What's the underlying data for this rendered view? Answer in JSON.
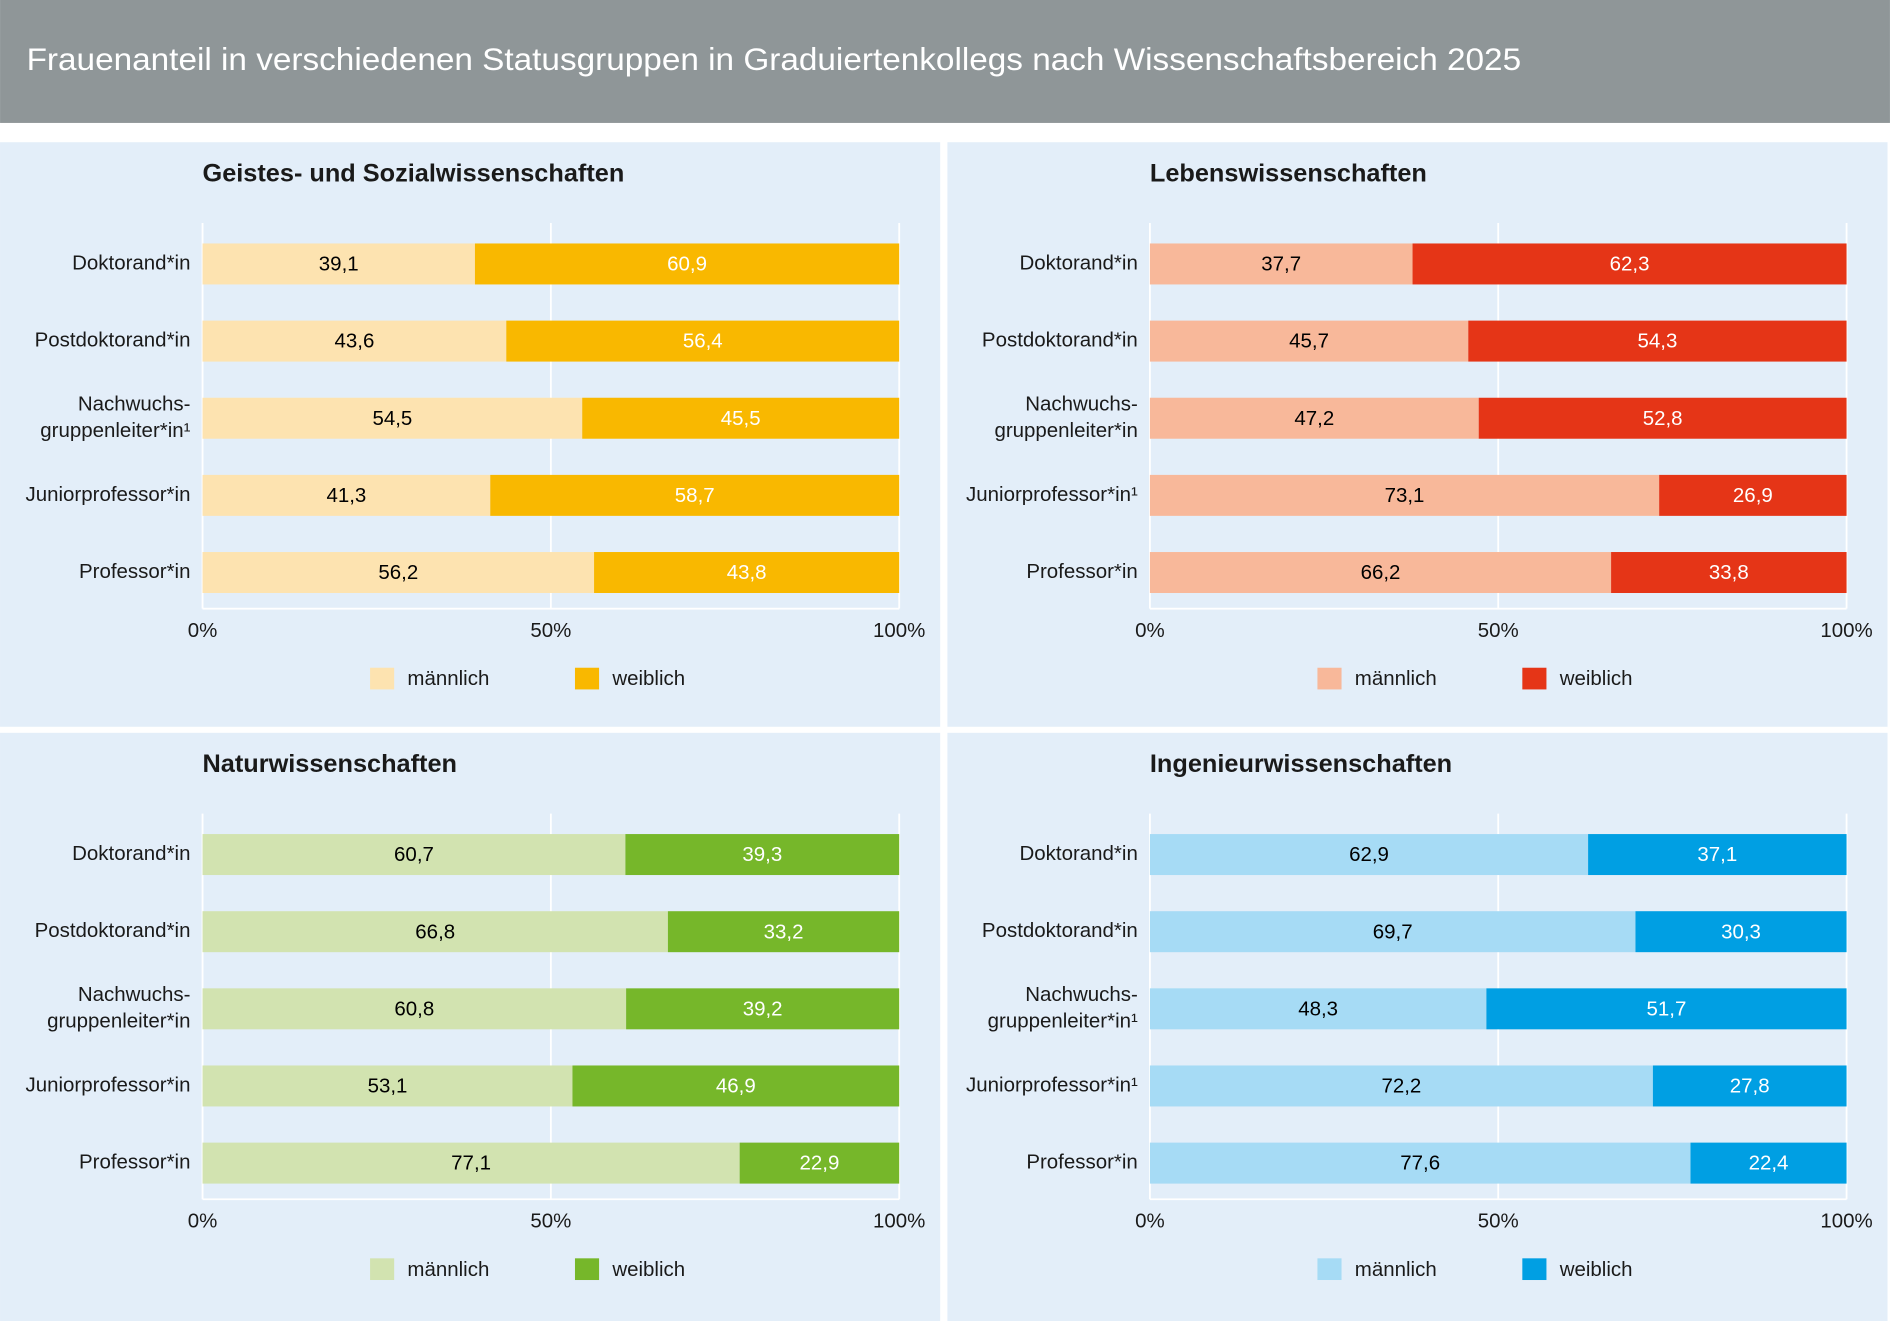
{
  "header": {
    "title": "Frauenanteil in verschiedenen Statusgruppen in Graduiertenkollegs nach Wissenschaftsbereich 2025"
  },
  "chart_data": [
    {
      "type": "bar",
      "orientation": "horizontal",
      "stacked": true,
      "title": "Geistes- und Sozialwissenschaften",
      "categories": [
        [
          "Doktorand*in"
        ],
        [
          "Postdoktorand*in"
        ],
        [
          "Nachwuchs-",
          "gruppenleiter*in¹"
        ],
        [
          "Juniorprofessor*in"
        ],
        [
          "Professor*in"
        ]
      ],
      "series": [
        {
          "name": "männlich",
          "color": "#fde3b0",
          "label_color": "#000000",
          "values": [
            39.1,
            43.6,
            54.5,
            41.3,
            56.2
          ],
          "value_labels": [
            "39,1",
            "43,6",
            "54,5",
            "41,3",
            "56,2"
          ]
        },
        {
          "name": "weiblich",
          "color": "#f9b800",
          "label_color": "#ffffff",
          "values": [
            60.9,
            56.4,
            45.5,
            58.7,
            43.8
          ],
          "value_labels": [
            "60,9",
            "56,4",
            "45,5",
            "58,7",
            "43,8"
          ]
        }
      ],
      "xlim": [
        0,
        100
      ],
      "xticks": [
        {
          "value": 0,
          "label": "0%"
        },
        {
          "value": 50,
          "label": "50%"
        },
        {
          "value": 100,
          "label": "100%"
        }
      ],
      "grid": true
    },
    {
      "type": "bar",
      "orientation": "horizontal",
      "stacked": true,
      "title": "Lebenswissenschaften",
      "categories": [
        [
          "Doktorand*in"
        ],
        [
          "Postdoktorand*in"
        ],
        [
          "Nachwuchs-",
          "gruppenleiter*in"
        ],
        [
          "Juniorprofessor*in¹"
        ],
        [
          "Professor*in"
        ]
      ],
      "series": [
        {
          "name": "männlich",
          "color": "#f8b89a",
          "label_color": "#000000",
          "values": [
            37.7,
            45.7,
            47.2,
            73.1,
            66.2
          ],
          "value_labels": [
            "37,7",
            "45,7",
            "47,2",
            "73,1",
            "66,2"
          ]
        },
        {
          "name": "weiblich",
          "color": "#e53517",
          "label_color": "#ffffff",
          "values": [
            62.3,
            54.3,
            52.8,
            26.9,
            33.8
          ],
          "value_labels": [
            "62,3",
            "54,3",
            "52,8",
            "26,9",
            "33,8"
          ]
        }
      ],
      "xlim": [
        0,
        100
      ],
      "xticks": [
        {
          "value": 0,
          "label": "0%"
        },
        {
          "value": 50,
          "label": "50%"
        },
        {
          "value": 100,
          "label": "100%"
        }
      ],
      "grid": true
    },
    {
      "type": "bar",
      "orientation": "horizontal",
      "stacked": true,
      "title": "Naturwissenschaften",
      "categories": [
        [
          "Doktorand*in"
        ],
        [
          "Postdoktorand*in"
        ],
        [
          "Nachwuchs-",
          "gruppenleiter*in"
        ],
        [
          "Juniorprofessor*in"
        ],
        [
          "Professor*in"
        ]
      ],
      "series": [
        {
          "name": "männlich",
          "color": "#d2e3b0",
          "label_color": "#000000",
          "values": [
            60.7,
            66.8,
            60.8,
            53.1,
            77.1
          ],
          "value_labels": [
            "60,7",
            "66,8",
            "60,8",
            "53,1",
            "77,1"
          ]
        },
        {
          "name": "weiblich",
          "color": "#76b72a",
          "label_color": "#ffffff",
          "values": [
            39.3,
            33.2,
            39.2,
            46.9,
            22.9
          ],
          "value_labels": [
            "39,3",
            "33,2",
            "39,2",
            "46,9",
            "22,9"
          ]
        }
      ],
      "xlim": [
        0,
        100
      ],
      "xticks": [
        {
          "value": 0,
          "label": "0%"
        },
        {
          "value": 50,
          "label": "50%"
        },
        {
          "value": 100,
          "label": "100%"
        }
      ],
      "grid": true
    },
    {
      "type": "bar",
      "orientation": "horizontal",
      "stacked": true,
      "title": "Ingenieurwissenschaften",
      "categories": [
        [
          "Doktorand*in"
        ],
        [
          "Postdoktorand*in"
        ],
        [
          "Nachwuchs-",
          "gruppenleiter*in¹"
        ],
        [
          "Juniorprofessor*in¹"
        ],
        [
          "Professor*in"
        ]
      ],
      "series": [
        {
          "name": "männlich",
          "color": "#a6dbf5",
          "label_color": "#000000",
          "values": [
            62.9,
            69.7,
            48.3,
            72.2,
            77.6
          ],
          "value_labels": [
            "62,9",
            "69,7",
            "48,3",
            "72,2",
            "77,6"
          ]
        },
        {
          "name": "weiblich",
          "color": "#009fe3",
          "label_color": "#ffffff",
          "values": [
            37.1,
            30.3,
            51.7,
            27.8,
            22.4
          ],
          "value_labels": [
            "37,1",
            "30,3",
            "51,7",
            "27,8",
            "22,4"
          ]
        }
      ],
      "xlim": [
        0,
        100
      ],
      "xticks": [
        {
          "value": 0,
          "label": "0%"
        },
        {
          "value": 50,
          "label": "50%"
        },
        {
          "value": 100,
          "label": "100%"
        }
      ],
      "grid": true
    }
  ]
}
